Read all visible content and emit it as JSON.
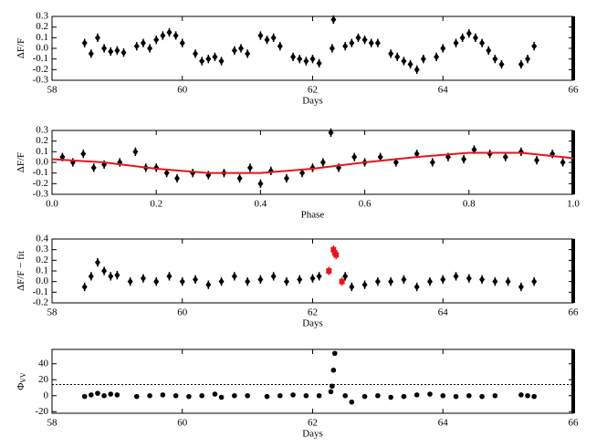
{
  "chart_data": [
    {
      "type": "scatter",
      "xlabel": "Days",
      "ylabel": "ΔF/F",
      "xlim": [
        58,
        66
      ],
      "xticks": [
        58,
        60,
        62,
        64,
        66
      ],
      "ylim": [
        -0.3,
        0.3
      ],
      "yticks": [
        -0.3,
        -0.2,
        -0.1,
        {
          "value": 0,
          "label": "0.0"
        },
        0.1,
        0.2,
        0.3
      ],
      "series": [
        {
          "color": "#000000",
          "marker": "diamond",
          "yerr": 0.04,
          "x": [
            58.5,
            58.6,
            58.7,
            58.8,
            58.9,
            59.0,
            59.1,
            59.3,
            59.4,
            59.5,
            59.6,
            59.7,
            59.8,
            59.9,
            60.0,
            60.2,
            60.3,
            60.4,
            60.5,
            60.6,
            60.8,
            60.9,
            61.0,
            61.2,
            61.3,
            61.4,
            61.5,
            61.7,
            61.8,
            61.9,
            62.0,
            62.1,
            62.3,
            62.32,
            62.5,
            62.6,
            62.7,
            62.8,
            62.9,
            63.0,
            63.2,
            63.3,
            63.4,
            63.5,
            63.6,
            63.7,
            63.9,
            64.0,
            64.2,
            64.3,
            64.4,
            64.5,
            64.6,
            64.7,
            64.8,
            64.9,
            65.2,
            65.3,
            65.4
          ],
          "values": [
            0.05,
            -0.05,
            0.1,
            0.0,
            -0.03,
            -0.02,
            -0.04,
            0.02,
            0.05,
            0.0,
            0.08,
            0.12,
            0.15,
            0.12,
            0.05,
            -0.05,
            -0.12,
            -0.1,
            -0.08,
            -0.12,
            -0.02,
            0.0,
            -0.05,
            0.12,
            0.08,
            0.1,
            0.02,
            -0.08,
            -0.1,
            -0.12,
            -0.1,
            -0.14,
            0.0,
            0.27,
            0.02,
            0.05,
            0.1,
            0.08,
            0.05,
            0.05,
            -0.05,
            -0.08,
            -0.12,
            -0.15,
            -0.2,
            -0.1,
            -0.08,
            0.0,
            0.05,
            0.1,
            0.14,
            0.1,
            0.05,
            -0.02,
            -0.1,
            -0.15,
            -0.15,
            -0.1,
            0.02
          ]
        }
      ]
    },
    {
      "type": "scatter",
      "xlabel": "Phase",
      "ylabel": "ΔF/F",
      "xlim": [
        0,
        1
      ],
      "xticks": [
        {
          "value": 0,
          "label": "0.0"
        },
        0.2,
        0.4,
        0.6,
        0.8,
        {
          "value": 1,
          "label": "1.0"
        }
      ],
      "ylim": [
        -0.3,
        0.3
      ],
      "yticks": [
        -0.3,
        -0.2,
        -0.1,
        {
          "value": 0,
          "label": "0.0"
        },
        0.1,
        0.2,
        0.3
      ],
      "series": [
        {
          "color": "#000000",
          "marker": "diamond",
          "yerr": 0.04,
          "x": [
            0.02,
            0.04,
            0.06,
            0.08,
            0.1,
            0.13,
            0.16,
            0.18,
            0.2,
            0.22,
            0.24,
            0.27,
            0.3,
            0.33,
            0.36,
            0.38,
            0.4,
            0.42,
            0.45,
            0.48,
            0.5,
            0.52,
            0.535,
            0.55,
            0.58,
            0.6,
            0.63,
            0.66,
            0.7,
            0.73,
            0.76,
            0.79,
            0.81,
            0.84,
            0.87,
            0.9,
            0.93,
            0.96,
            0.98
          ],
          "values": [
            0.05,
            0.0,
            0.08,
            -0.05,
            -0.02,
            0.0,
            0.1,
            -0.05,
            -0.05,
            -0.1,
            -0.15,
            -0.1,
            -0.12,
            -0.1,
            -0.15,
            -0.05,
            -0.2,
            -0.08,
            -0.15,
            -0.1,
            -0.05,
            0.0,
            0.28,
            -0.05,
            0.05,
            0.0,
            0.05,
            0.0,
            0.08,
            0.0,
            0.05,
            0.03,
            0.12,
            0.08,
            0.05,
            0.1,
            0.02,
            0.08,
            0.0
          ]
        },
        {
          "color": "#e8141c",
          "marker": "line",
          "x": [
            0,
            0.1,
            0.2,
            0.3,
            0.4,
            0.5,
            0.6,
            0.7,
            0.8,
            0.9,
            1.0
          ],
          "values": [
            0.03,
            0.0,
            -0.06,
            -0.1,
            -0.1,
            -0.06,
            0.0,
            0.05,
            0.09,
            0.09,
            0.04
          ]
        }
      ]
    },
    {
      "type": "scatter",
      "xlabel": "Days",
      "ylabel": "ΔF/F − fit",
      "xlim": [
        58,
        66
      ],
      "xticks": [
        58,
        60,
        62,
        64,
        66
      ],
      "ylim": [
        -0.2,
        0.4
      ],
      "yticks": [
        -0.2,
        -0.1,
        {
          "value": 0,
          "label": "0.0"
        },
        0.1,
        0.2,
        0.3,
        0.4
      ],
      "series": [
        {
          "color": "#000000",
          "marker": "diamond",
          "yerr": 0.04,
          "x": [
            58.5,
            58.6,
            58.7,
            58.8,
            58.9,
            59.0,
            59.2,
            59.4,
            59.6,
            59.8,
            60.0,
            60.2,
            60.4,
            60.6,
            60.8,
            61.0,
            61.2,
            61.4,
            61.6,
            61.8,
            62.0,
            62.1,
            62.5,
            62.6,
            62.8,
            63.0,
            63.2,
            63.4,
            63.6,
            63.8,
            64.0,
            64.2,
            64.4,
            64.6,
            64.8,
            65.0,
            65.2,
            65.4
          ],
          "values": [
            -0.05,
            0.05,
            0.18,
            0.1,
            0.05,
            0.06,
            0.0,
            0.03,
            0.0,
            0.05,
            0.0,
            0.02,
            -0.03,
            0.0,
            0.05,
            0.0,
            0.02,
            0.05,
            0.0,
            0.02,
            0.03,
            0.05,
            0.05,
            -0.05,
            -0.03,
            0.0,
            0.0,
            0.02,
            -0.05,
            0.0,
            0.02,
            0.05,
            0.03,
            0.02,
            0.0,
            0.0,
            -0.05,
            0.0
          ]
        },
        {
          "color": "#e8141c",
          "marker": "square",
          "yerr": 0.04,
          "x": [
            62.25,
            62.32,
            62.34,
            62.36,
            62.45
          ],
          "values": [
            0.1,
            0.3,
            0.27,
            0.25,
            0.0
          ]
        }
      ]
    },
    {
      "type": "scatter",
      "xlabel": "Days",
      "ylabel": "Φ",
      "ylabel_sub": "VV",
      "xlim": [
        58,
        66
      ],
      "xticks": [
        58,
        60,
        62,
        64,
        66
      ],
      "ylim": [
        -22,
        58
      ],
      "yticks": [
        -20,
        0,
        20,
        40
      ],
      "hline": 14,
      "series": [
        {
          "color": "#000000",
          "marker": "circle",
          "x": [
            58.5,
            58.6,
            58.7,
            58.8,
            58.9,
            59.0,
            59.3,
            59.5,
            59.7,
            59.9,
            60.1,
            60.3,
            60.5,
            60.6,
            60.8,
            61.0,
            61.3,
            61.5,
            61.7,
            61.9,
            62.1,
            62.28,
            62.3,
            62.32,
            62.34,
            62.5,
            62.6,
            62.8,
            63.0,
            63.2,
            63.4,
            63.6,
            63.8,
            64.0,
            64.2,
            64.4,
            64.6,
            64.8,
            65.2,
            65.3,
            65.4
          ],
          "values": [
            -1,
            1,
            3,
            0,
            2,
            1,
            -1,
            0,
            1,
            0,
            -1,
            0,
            2,
            -2,
            0,
            0,
            -1,
            0,
            1,
            0,
            0,
            5,
            12,
            32,
            53,
            0,
            -8,
            -1,
            0,
            -2,
            -1,
            1,
            2,
            0,
            -1,
            0,
            -1,
            0,
            1,
            0,
            -1
          ]
        }
      ]
    }
  ]
}
